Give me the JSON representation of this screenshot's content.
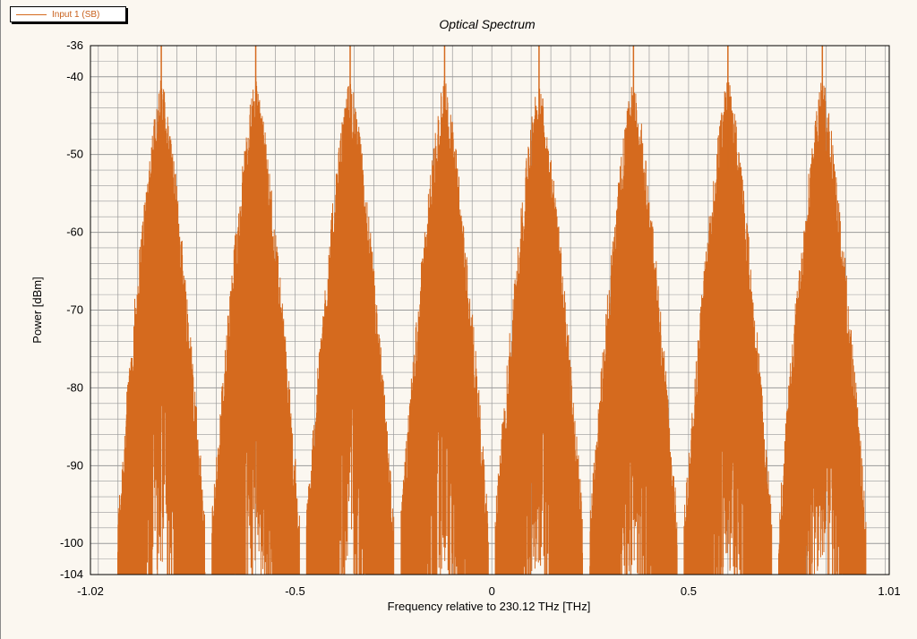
{
  "chart_data": {
    "type": "line",
    "title": "Optical Spectrum",
    "xlabel": "Frequency relative to 230.12 THz [THz]",
    "ylabel": "Power [dBm]",
    "xlim": [
      -1.02,
      1.01
    ],
    "ylim": [
      -104,
      -36
    ],
    "x_tick_labels": [
      "-1.02",
      "-0.5",
      "0",
      "0.5",
      "1.01"
    ],
    "x_ticks": [
      -1.02,
      -0.5,
      0,
      0.5,
      1.01
    ],
    "y_tick_labels": [
      "-36",
      "-40",
      "-50",
      "-60",
      "-70",
      "-80",
      "-90",
      "-100",
      "-104"
    ],
    "y_ticks": [
      -36,
      -40,
      -50,
      -60,
      -70,
      -80,
      -90,
      -100,
      -104
    ],
    "grid": true,
    "series": [
      {
        "name": "Input 1  (SB)",
        "color": "#d56a1e",
        "peaks_x": [
          -0.84,
          -0.6,
          -0.36,
          -0.12,
          0.12,
          0.36,
          0.6,
          0.84
        ],
        "peak_power_dbm": -36,
        "envelope_top_dbm": -40,
        "floor_power_dbm": -104
      }
    ]
  },
  "legend": {
    "label": "Input 1  (SB)"
  },
  "colors": {
    "plot_background": "#fbf7f0",
    "grid": "#9a9a9a",
    "trace": "#d56a1e"
  }
}
